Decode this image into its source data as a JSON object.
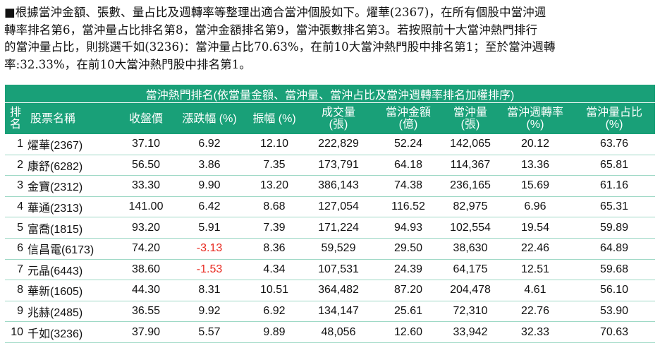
{
  "intro": {
    "lines": [
      "■根據當沖金額、張數、量占比及週轉率等整理出適合當沖個股如下。燿華(2367)，在所有個股中當沖週",
      "轉率排名第6，當沖量占比排名第8，當沖金額排名第9，當沖張數排名第3。若按照前十大當沖熱門排行",
      "的當沖量占比，則挑選千如(3236)：當沖量占比70.63%，在前10大當沖熱門股中排名第1；至於當沖週轉",
      "率:32.33%，在前10大當沖熱門股中排名第1。"
    ]
  },
  "table": {
    "title": "當沖熱門排名(依當量金額、當沖量、當沖占比及當沖週轉率排名加權排序)",
    "headers": {
      "rank_1": "排",
      "rank_2": "名",
      "name": "股票名稱",
      "close": "收盤價",
      "change": "漲跌幅 (%)",
      "amplitude": "振幅 (%)",
      "volume_1": "成交量",
      "volume_2": "(張)",
      "daytrade_amount_1": "當沖金額",
      "daytrade_amount_2": "(億)",
      "daytrade_qty_1": "當沖量",
      "daytrade_qty_2": "(張)",
      "turnover_1": "當沖週轉率",
      "turnover_2": "(%)",
      "ratio_1": "當沖量占比",
      "ratio_2": "(%)"
    },
    "rows": [
      {
        "rank": "1",
        "name": "燿華(2367)",
        "close": "37.10",
        "change": "6.92",
        "amplitude": "12.10",
        "volume": "222,829",
        "amount": "52.24",
        "qty": "142,065",
        "turnover": "20.12",
        "ratio": "63.76",
        "negative": false
      },
      {
        "rank": "2",
        "name": "康舒(6282)",
        "close": "56.50",
        "change": "3.86",
        "amplitude": "7.35",
        "volume": "173,791",
        "amount": "64.18",
        "qty": "114,367",
        "turnover": "13.36",
        "ratio": "65.81",
        "negative": false
      },
      {
        "rank": "3",
        "name": "金寶(2312)",
        "close": "33.30",
        "change": "9.90",
        "amplitude": "13.20",
        "volume": "386,143",
        "amount": "74.38",
        "qty": "236,165",
        "turnover": "15.69",
        "ratio": "61.16",
        "negative": false
      },
      {
        "rank": "4",
        "name": "華通(2313)",
        "close": "141.00",
        "change": "6.42",
        "amplitude": "8.68",
        "volume": "127,054",
        "amount": "116.52",
        "qty": "82,975",
        "turnover": "6.96",
        "ratio": "65.31",
        "negative": false
      },
      {
        "rank": "5",
        "name": "富喬(1815)",
        "close": "93.20",
        "change": "5.91",
        "amplitude": "7.39",
        "volume": "171,224",
        "amount": "94.93",
        "qty": "102,554",
        "turnover": "19.54",
        "ratio": "59.89",
        "negative": false
      },
      {
        "rank": "6",
        "name": "信昌電(6173)",
        "close": "74.20",
        "change": "-3.13",
        "amplitude": "8.36",
        "volume": "59,529",
        "amount": "29.50",
        "qty": "38,630",
        "turnover": "22.46",
        "ratio": "64.89",
        "negative": true
      },
      {
        "rank": "7",
        "name": "元晶(6443)",
        "close": "38.60",
        "change": "-1.53",
        "amplitude": "4.34",
        "volume": "107,531",
        "amount": "24.39",
        "qty": "64,175",
        "turnover": "12.51",
        "ratio": "59.68",
        "negative": true
      },
      {
        "rank": "8",
        "name": "華新(1605)",
        "close": "44.30",
        "change": "8.31",
        "amplitude": "10.51",
        "volume": "364,482",
        "amount": "87.20",
        "qty": "204,478",
        "turnover": "4.61",
        "ratio": "56.10",
        "negative": false
      },
      {
        "rank": "9",
        "name": "兆赫(2485)",
        "close": "36.55",
        "change": "9.92",
        "amplitude": "6.92",
        "volume": "134,147",
        "amount": "25.61",
        "qty": "72,310",
        "turnover": "22.76",
        "ratio": "53.90",
        "negative": false
      },
      {
        "rank": "10",
        "name": "千如(3236)",
        "close": "37.90",
        "change": "5.57",
        "amplitude": "9.89",
        "volume": "48,056",
        "amount": "12.60",
        "qty": "33,942",
        "turnover": "32.33",
        "ratio": "70.63",
        "negative": false
      }
    ]
  }
}
